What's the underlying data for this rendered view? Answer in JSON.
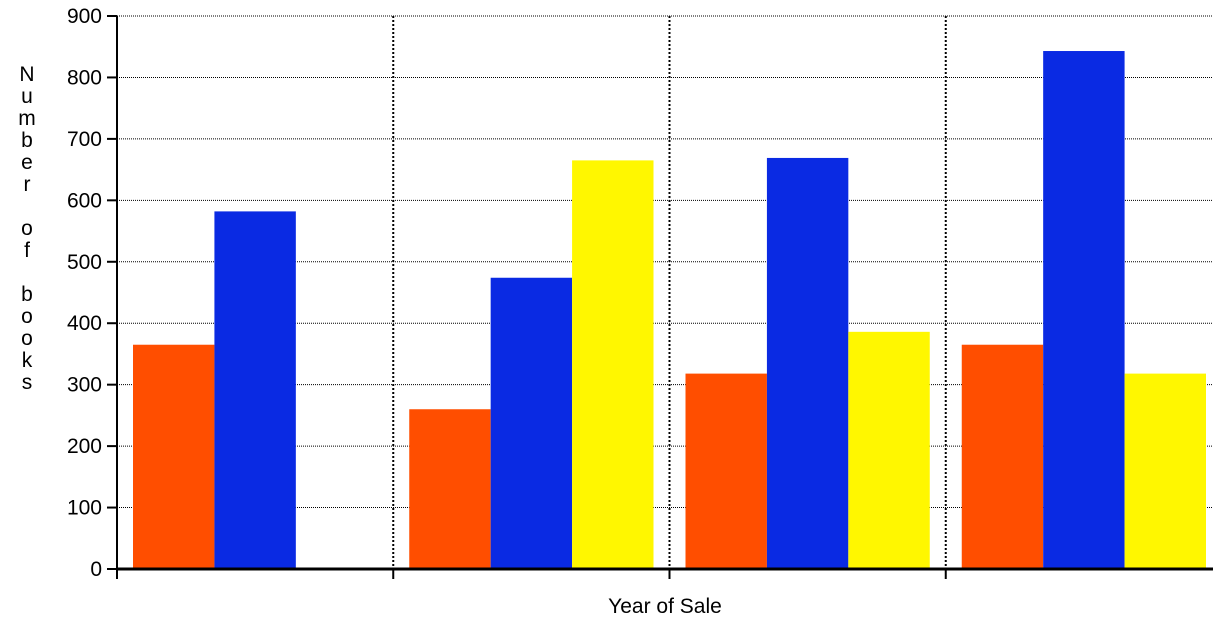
{
  "chart_data": {
    "type": "bar",
    "title": "",
    "xlabel": "Year of Sale",
    "ylabel": "Number of books",
    "ylim": [
      0,
      900
    ],
    "yticks": [
      0,
      100,
      200,
      300,
      400,
      500,
      600,
      700,
      800,
      900
    ],
    "categories": [
      "",
      "",
      "",
      ""
    ],
    "grid": true,
    "legend": "none",
    "series": [
      {
        "values": [
          365,
          260,
          318,
          365
        ],
        "color": "#ff4e00"
      },
      {
        "values": [
          582,
          474,
          669,
          843
        ],
        "color": "#0a2ae3"
      },
      {
        "values": [
          0,
          665,
          386,
          318
        ],
        "color": "#fff700"
      }
    ]
  }
}
